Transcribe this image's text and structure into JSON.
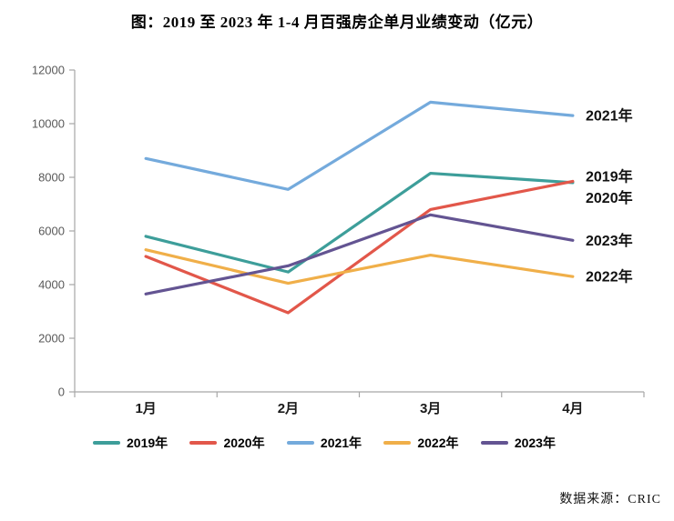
{
  "title": "图：2019 至 2023 年 1-4 月百强房企单月业绩变动（亿元）",
  "source": "数据来源：CRIC",
  "chart_data": {
    "type": "line",
    "categories": [
      "1月",
      "2月",
      "3月",
      "4月"
    ],
    "series": [
      {
        "name": "2019年",
        "color": "#3D9E9A",
        "values": [
          5800,
          4470,
          8150,
          7800
        ],
        "label_dy": -7
      },
      {
        "name": "2020年",
        "color": "#E2574A",
        "values": [
          5050,
          2950,
          6800,
          7850
        ],
        "label_dy": 18
      },
      {
        "name": "2021年",
        "color": "#74AADC",
        "values": [
          8700,
          7550,
          10800,
          10300
        ],
        "label_dy": 0
      },
      {
        "name": "2022年",
        "color": "#F0AF49",
        "values": [
          5300,
          4050,
          5100,
          4300
        ],
        "label_dy": 0
      },
      {
        "name": "2023年",
        "color": "#635492",
        "values": [
          3650,
          4700,
          6600,
          5650
        ],
        "label_dy": 0
      }
    ],
    "title": "图：2019 至 2023 年 1-4 月百强房企单月业绩变动（亿元）",
    "xlabel": "",
    "ylabel": "",
    "ylim": [
      0,
      12000
    ],
    "y_tick_step": 2000,
    "y_tick_labels": [
      "0",
      "2000",
      "4000",
      "6000",
      "8000",
      "10000",
      "12000"
    ],
    "grid": false,
    "legend_position": "bottom",
    "direct_labels": true,
    "axis_color": "#A6A6A6",
    "tick_label_color": "#595959",
    "category_label_color": "#1a1a1a"
  }
}
